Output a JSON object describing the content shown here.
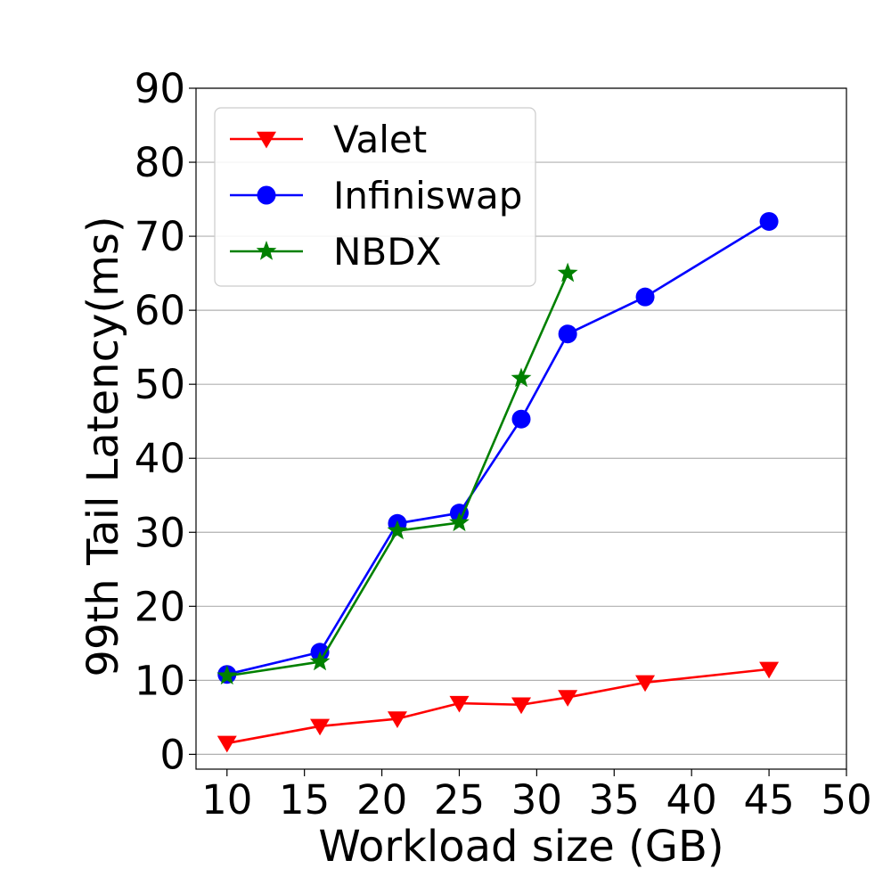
{
  "chart_data": {
    "type": "line",
    "title": "",
    "xlabel": "Workload size (GB)",
    "ylabel": "99th Tail Latency(ms)",
    "xlim": [
      8,
      50
    ],
    "ylim": [
      -2,
      90
    ],
    "xticks": [
      10,
      15,
      20,
      25,
      30,
      35,
      40,
      45,
      50
    ],
    "yticks": [
      0,
      10,
      20,
      30,
      40,
      50,
      60,
      70,
      80,
      90
    ],
    "grid": "horizontal",
    "legend_position": "top-left",
    "series": [
      {
        "name": "Valet",
        "color": "#ff0000",
        "marker": "triangle-down",
        "x": [
          10,
          16,
          21,
          25,
          29,
          32,
          37,
          45
        ],
        "y": [
          1.5,
          3.8,
          4.8,
          6.9,
          6.7,
          7.7,
          9.7,
          11.5
        ]
      },
      {
        "name": "Infiniswap",
        "color": "#0000ff",
        "marker": "circle",
        "x": [
          10,
          16,
          21,
          25,
          29,
          32,
          37,
          45
        ],
        "y": [
          10.8,
          13.8,
          31.2,
          32.6,
          45.3,
          56.8,
          61.8,
          72.0
        ]
      },
      {
        "name": "NBDX",
        "color": "#008000",
        "marker": "star",
        "x": [
          10,
          16,
          21,
          25,
          29,
          32
        ],
        "y": [
          10.6,
          12.5,
          30.2,
          31.3,
          50.8,
          65.0
        ]
      }
    ]
  }
}
